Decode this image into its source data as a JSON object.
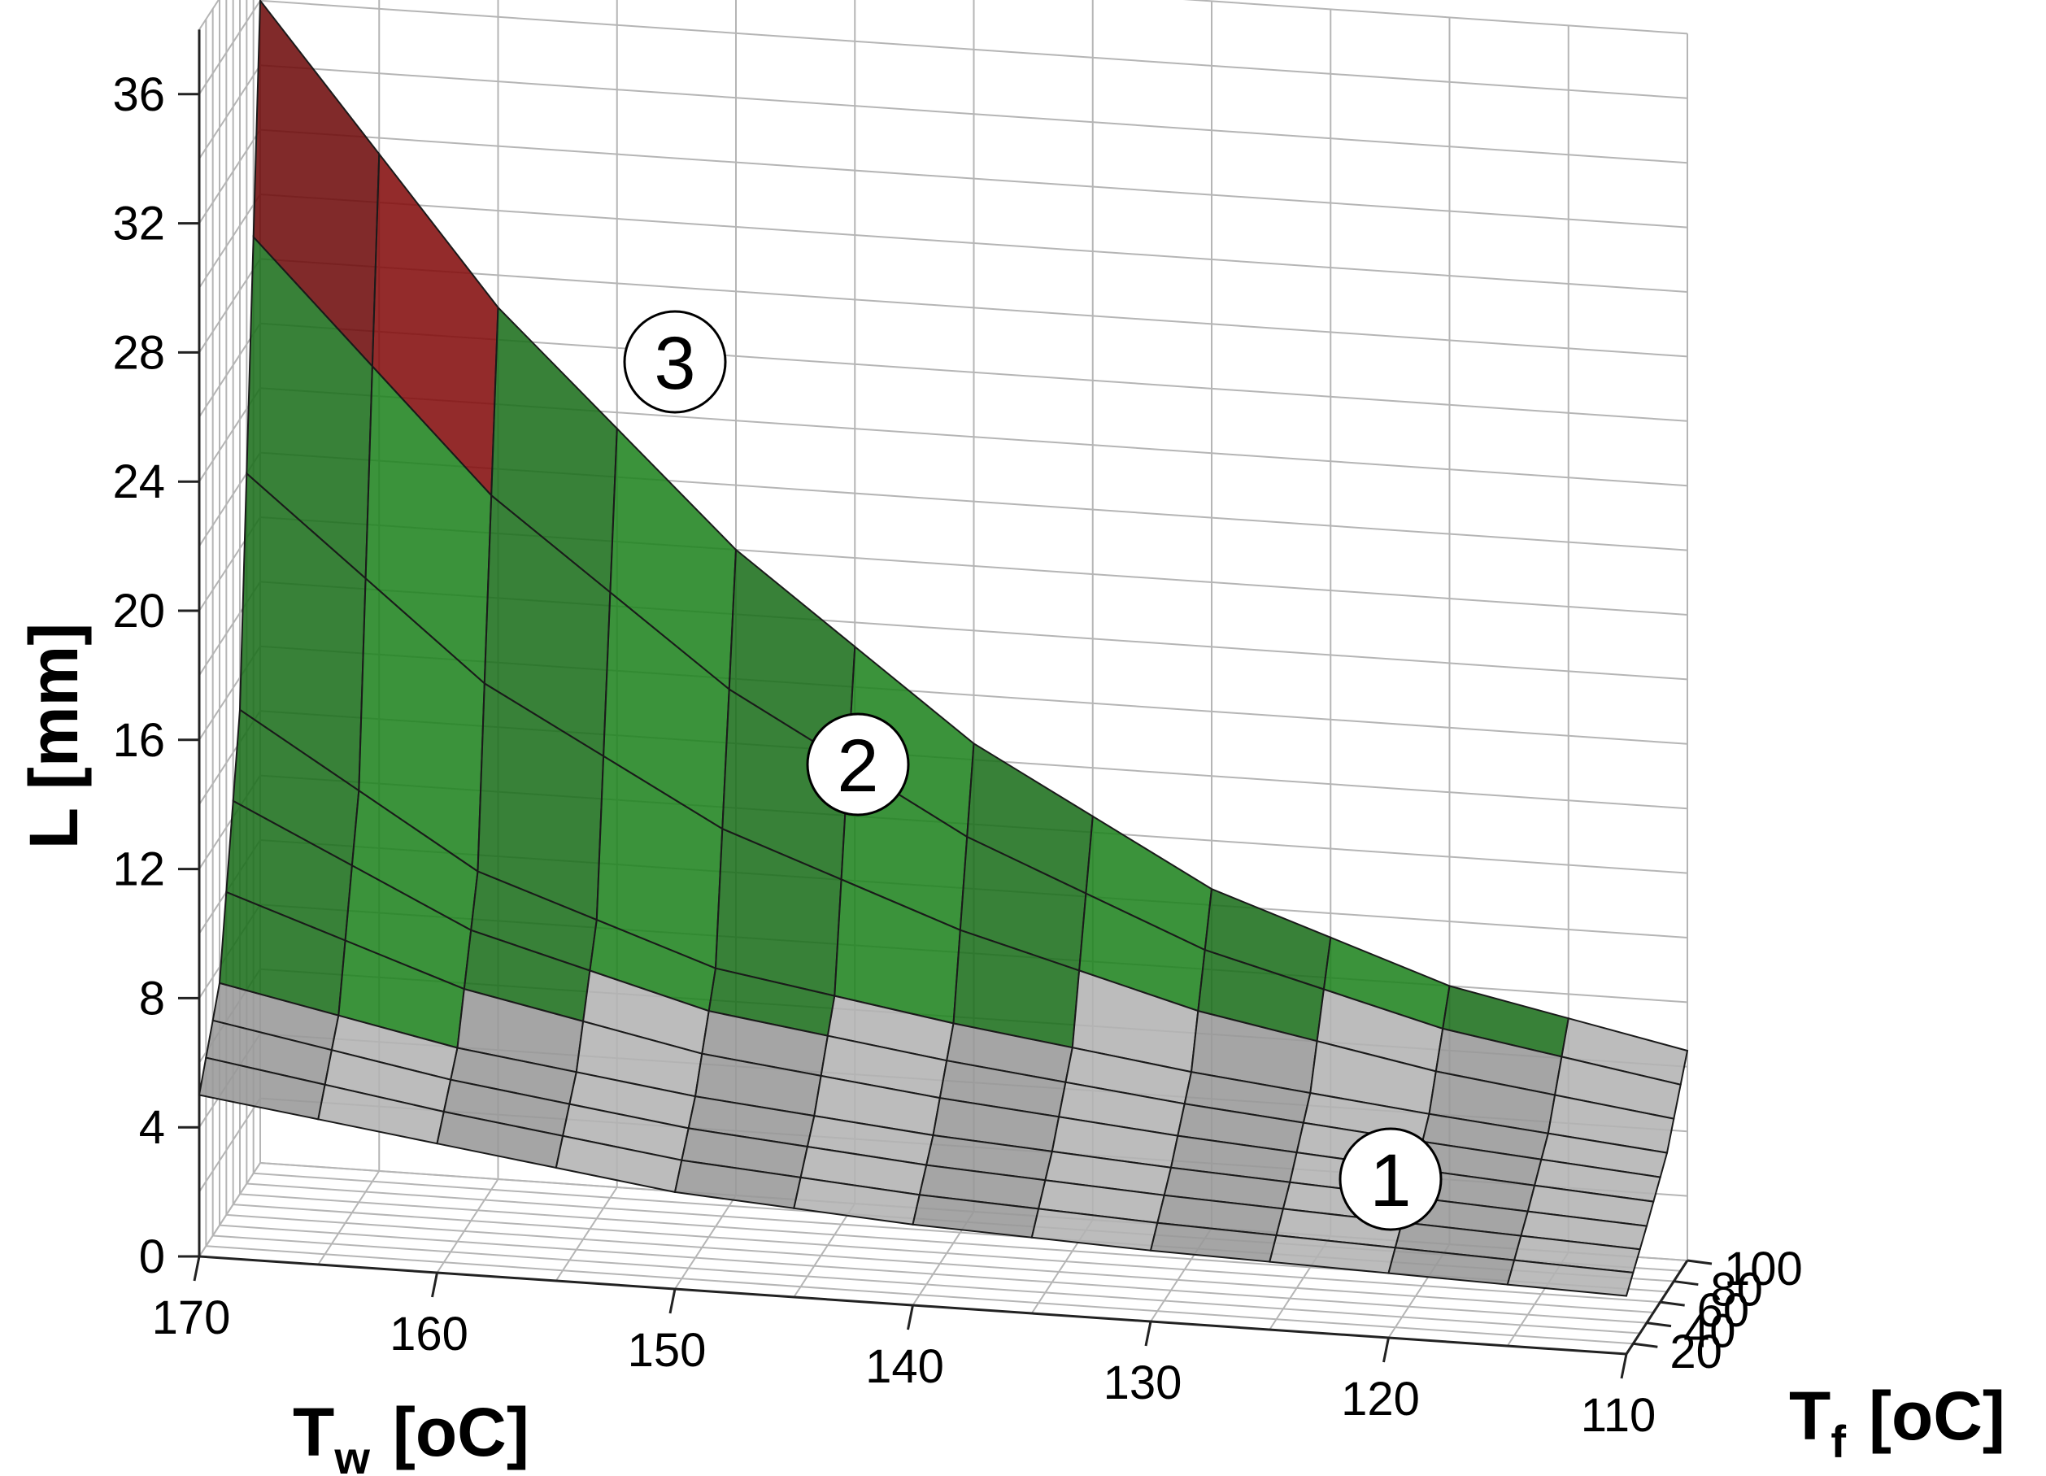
{
  "chart_data": {
    "type": "surface-3d",
    "z_axis": {
      "label": "L [mm]",
      "ticks": [
        "0",
        "4",
        "8",
        "12",
        "16",
        "20",
        "24",
        "28",
        "32",
        "36"
      ],
      "range": [
        0,
        38
      ]
    },
    "x_axis": {
      "label_main": "T",
      "label_sub": "w",
      "label_unit": "[oC]",
      "ticks": [
        "170",
        "160",
        "150",
        "140",
        "130",
        "120",
        "110"
      ],
      "range": [
        170,
        110
      ]
    },
    "y_axis": {
      "label_main": "T",
      "label_sub": "f",
      "label_unit": "[oC]",
      "ticks": [
        "20",
        "40",
        "60",
        "80",
        "100"
      ],
      "range": [
        10,
        100
      ]
    },
    "regions": [
      {
        "label": "1",
        "color": "#a6a6a6",
        "z_range": [
          0,
          7
        ]
      },
      {
        "label": "2",
        "color": "#1e7a1e",
        "z_range": [
          7,
          25.5
        ]
      },
      {
        "label": "3",
        "color": "#7a0d0d",
        "z_range": [
          25.5,
          36
        ]
      }
    ],
    "grid": true,
    "description_rows": [
      {
        "Tf": 10,
        "L": [
          5.0,
          4.0,
          3.0,
          2.5,
          2.2,
          2.0,
          1.8
        ]
      },
      {
        "Tf": 40,
        "L": [
          7.5,
          6.0,
          5.0,
          4.3,
          3.8,
          3.4,
          3.0
        ]
      },
      {
        "Tf": 70,
        "L": [
          15.0,
          10.5,
          8.0,
          6.8,
          5.8,
          5.0,
          4.3
        ]
      },
      {
        "Tf": 100,
        "L": [
          36.0,
          27.0,
          20.0,
          14.5,
          10.5,
          8.0,
          6.5
        ]
      }
    ]
  }
}
